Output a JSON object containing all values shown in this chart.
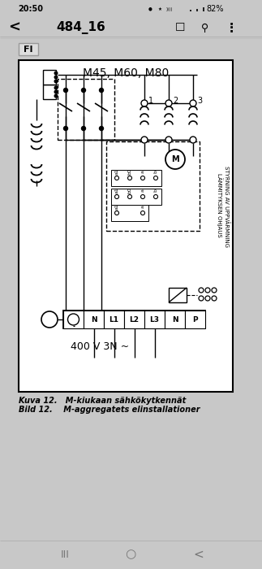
{
  "bg_color": "#c8c8c8",
  "diag_bg": "#ffffff",
  "title": "M45, M60, M80",
  "fi_label": "FI",
  "caption_line1": "Kuva 12.   M-kiukaan sähkökytkennät",
  "caption_line2": "Bild 12.    M-aggregatets elinstallationer",
  "voltage_label": "400 V 3N ~",
  "terminal_labels": [
    "⊕",
    "N",
    "L1",
    "L2",
    "L3",
    "N",
    "P"
  ],
  "heater_labels": [
    "1",
    "2",
    "3"
  ],
  "vert_label1": "LÄMMITYKSEN OHJAUS",
  "vert_label2": "STYRNING AV UPPVÄRMNING",
  "motor_label": "M",
  "status_time": "20:50",
  "status_pct": "82%",
  "nav_title": "484_16"
}
